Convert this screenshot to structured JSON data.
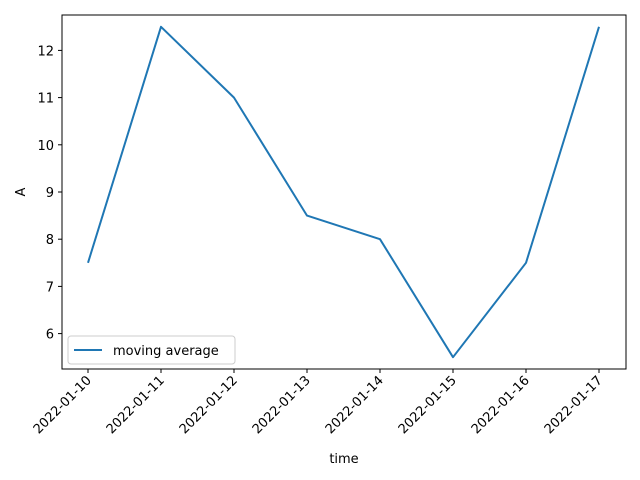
{
  "chart_data": {
    "type": "line",
    "title": "",
    "xlabel": "time",
    "ylabel": "A",
    "x": [
      "2022-01-10",
      "2022-01-11",
      "2022-01-12",
      "2022-01-13",
      "2022-01-14",
      "2022-01-15",
      "2022-01-16",
      "2022-01-17"
    ],
    "series": [
      {
        "name": "moving average",
        "color": "#1f77b4",
        "values": [
          7.5,
          12.5,
          11.0,
          8.5,
          8.0,
          5.5,
          7.5,
          12.5
        ]
      }
    ],
    "ylim": [
      5.25,
      12.75
    ],
    "yticks": [
      6,
      7,
      8,
      9,
      10,
      11,
      12
    ],
    "grid": false,
    "legend_position": "lower-left",
    "x_tick_rotation": "45 degrees"
  }
}
